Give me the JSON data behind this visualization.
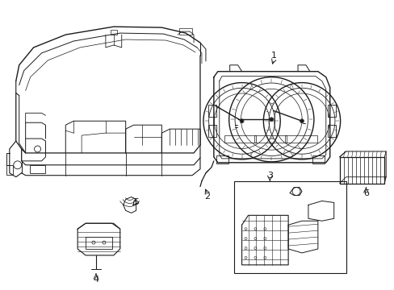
{
  "bg_color": "#ffffff",
  "line_color": "#1a1a1a",
  "figsize": [
    4.89,
    3.6
  ],
  "dpi": 100
}
